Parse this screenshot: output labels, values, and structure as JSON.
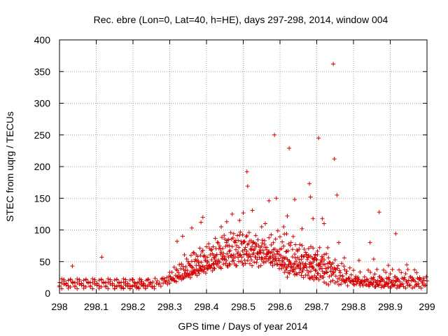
{
  "chart_data": {
    "type": "scatter",
    "title": "Rec. ebre (Lon=0, Lat=40, h=HE), days 297-298, 2014, window 004",
    "xlabel": "GPS time / Days of year 2014",
    "ylabel": "STEC from uqrg / TECUs",
    "xlim": [
      298,
      299
    ],
    "ylim": [
      0,
      400
    ],
    "xticks": [
      298,
      298.1,
      298.2,
      298.3,
      298.4,
      298.5,
      298.6,
      298.7,
      298.8,
      298.9,
      299
    ],
    "xtick_labels": [
      "298",
      "298.1",
      "298.2",
      "298.3",
      "298.4",
      "298.5",
      "298.6",
      "298.7",
      "298.8",
      "298.9",
      "299"
    ],
    "yticks": [
      0,
      50,
      100,
      150,
      200,
      250,
      300,
      350,
      400
    ],
    "ytick_labels": [
      "0",
      "50",
      "100",
      "150",
      "200",
      "250",
      "300",
      "350",
      "400"
    ],
    "grid": true,
    "marker": "+",
    "color": "#d40000",
    "outliers": [
      [
        298.035,
        43
      ],
      [
        298.115,
        57
      ],
      [
        298.32,
        82
      ],
      [
        298.335,
        90
      ],
      [
        298.36,
        103
      ],
      [
        298.385,
        112
      ],
      [
        298.39,
        120
      ],
      [
        298.44,
        105
      ],
      [
        298.455,
        113
      ],
      [
        298.47,
        125
      ],
      [
        298.49,
        115
      ],
      [
        298.5,
        127
      ],
      [
        298.51,
        192
      ],
      [
        298.512,
        169
      ],
      [
        298.525,
        131
      ],
      [
        298.55,
        105
      ],
      [
        298.56,
        110
      ],
      [
        298.57,
        146
      ],
      [
        298.585,
        250
      ],
      [
        298.59,
        150
      ],
      [
        298.61,
        105
      ],
      [
        298.62,
        122
      ],
      [
        298.625,
        229
      ],
      [
        298.64,
        148
      ],
      [
        298.66,
        102
      ],
      [
        298.68,
        173
      ],
      [
        298.683,
        152
      ],
      [
        298.69,
        118
      ],
      [
        298.705,
        245
      ],
      [
        298.715,
        118
      ],
      [
        298.72,
        110
      ],
      [
        298.73,
        72
      ],
      [
        298.745,
        362
      ],
      [
        298.748,
        212
      ],
      [
        298.755,
        155
      ],
      [
        298.76,
        80
      ],
      [
        298.775,
        56
      ],
      [
        298.79,
        40
      ],
      [
        298.815,
        52
      ],
      [
        298.845,
        80
      ],
      [
        298.855,
        54
      ],
      [
        298.87,
        128
      ],
      [
        298.895,
        44
      ],
      [
        298.915,
        94
      ],
      [
        298.945,
        45
      ],
      [
        298.98,
        23
      ],
      [
        298.99,
        24
      ]
    ],
    "tracks": [
      {
        "start": 298.0,
        "end": 298.26,
        "step": 0.006,
        "base": 12,
        "amp": 5,
        "bump": 0,
        "peak": 298.12,
        "width": 0.1,
        "phase": 0.3
      },
      {
        "start": 298.0,
        "end": 298.24,
        "step": 0.006,
        "base": 16,
        "amp": 6,
        "bump": 0,
        "peak": 298.1,
        "width": 0.1,
        "phase": 1.7
      },
      {
        "start": 298.0,
        "end": 298.2,
        "step": 0.006,
        "base": 19,
        "amp": 4,
        "bump": 0,
        "peak": 298.1,
        "width": 0.1,
        "phase": 2.9
      },
      {
        "start": 298.15,
        "end": 298.42,
        "step": 0.006,
        "base": 10,
        "amp": 3,
        "bump": 32,
        "peak": 298.42,
        "width": 0.1,
        "phase": 0.9
      },
      {
        "start": 298.2,
        "end": 298.55,
        "step": 0.006,
        "base": 18,
        "amp": 4,
        "bump": 30,
        "peak": 298.5,
        "width": 0.14,
        "phase": 2.2
      },
      {
        "start": 298.28,
        "end": 298.72,
        "step": 0.006,
        "base": 22,
        "amp": 3,
        "bump": 38,
        "peak": 298.5,
        "width": 0.12,
        "phase": 4.1
      },
      {
        "start": 298.3,
        "end": 298.75,
        "step": 0.006,
        "base": 35,
        "amp": 5,
        "bump": 30,
        "peak": 298.5,
        "width": 0.11,
        "phase": 5.2
      },
      {
        "start": 298.32,
        "end": 298.72,
        "step": 0.006,
        "base": 40,
        "amp": 6,
        "bump": 38,
        "peak": 298.5,
        "width": 0.1,
        "phase": 0.5
      },
      {
        "start": 298.34,
        "end": 298.7,
        "step": 0.006,
        "base": 48,
        "amp": 8,
        "bump": 40,
        "peak": 298.47,
        "width": 0.09,
        "phase": 3.3
      },
      {
        "start": 298.36,
        "end": 298.62,
        "step": 0.006,
        "base": 55,
        "amp": 8,
        "bump": 35,
        "peak": 298.5,
        "width": 0.08,
        "phase": 1.4
      },
      {
        "start": 298.42,
        "end": 298.72,
        "step": 0.006,
        "base": 50,
        "amp": 9,
        "bump": 40,
        "peak": 298.6,
        "width": 0.07,
        "phase": 2.6
      },
      {
        "start": 298.55,
        "end": 298.75,
        "step": 0.006,
        "base": 42,
        "amp": 6,
        "bump": 28,
        "peak": 298.62,
        "width": 0.07,
        "phase": 4.8
      },
      {
        "start": 298.6,
        "end": 298.78,
        "step": 0.006,
        "base": 38,
        "amp": 8,
        "bump": 30,
        "peak": 298.69,
        "width": 0.05,
        "phase": 0.2
      },
      {
        "start": 298.62,
        "end": 298.82,
        "step": 0.006,
        "base": 28,
        "amp": 7,
        "bump": 22,
        "peak": 298.7,
        "width": 0.06,
        "phase": 3.9
      },
      {
        "start": 298.68,
        "end": 298.93,
        "step": 0.006,
        "base": 14,
        "amp": 4,
        "bump": 16,
        "peak": 298.73,
        "width": 0.06,
        "phase": 1.1
      },
      {
        "start": 298.72,
        "end": 299.0,
        "step": 0.006,
        "base": 11,
        "amp": 3,
        "bump": 10,
        "peak": 298.78,
        "width": 0.06,
        "phase": 2.4
      },
      {
        "start": 298.76,
        "end": 299.0,
        "step": 0.006,
        "base": 17,
        "amp": 5,
        "bump": 0,
        "peak": 298.85,
        "width": 0.1,
        "phase": 5.6
      },
      {
        "start": 298.8,
        "end": 299.0,
        "step": 0.006,
        "base": 22,
        "amp": 4,
        "bump": 0,
        "peak": 298.9,
        "width": 0.1,
        "phase": 0.8
      },
      {
        "start": 298.84,
        "end": 298.98,
        "step": 0.006,
        "base": 30,
        "amp": 8,
        "bump": 0,
        "peak": 298.9,
        "width": 0.1,
        "phase": 3.7
      }
    ]
  }
}
